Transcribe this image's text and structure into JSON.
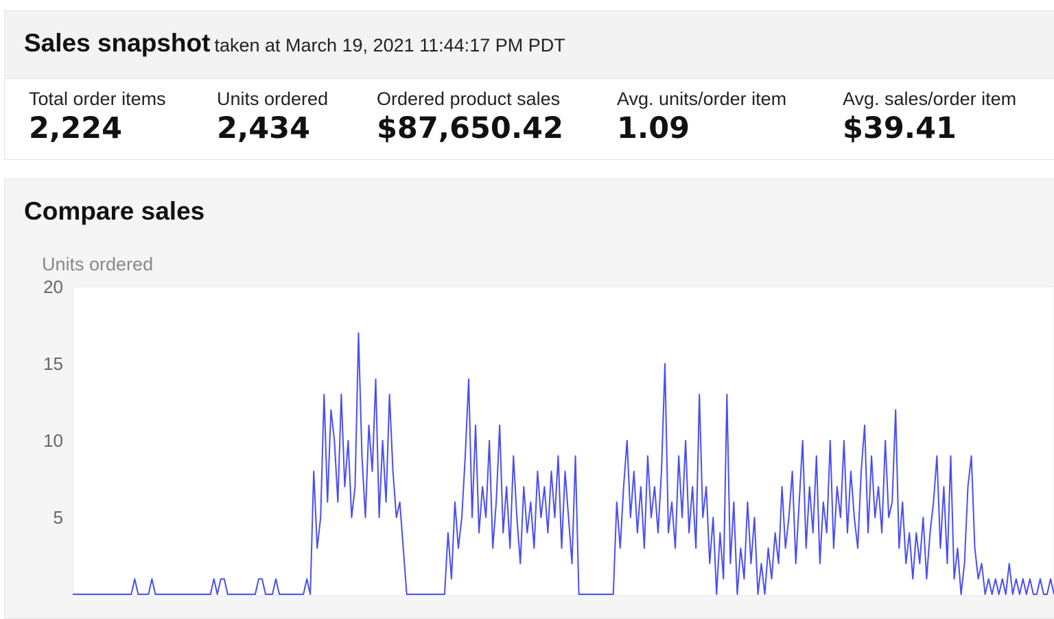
{
  "header": {
    "title": "Sales snapshot",
    "subtitle": "taken at March 19, 2021 11:44:17 PM PDT"
  },
  "metrics": [
    {
      "label": "Total order items",
      "value": "2,224"
    },
    {
      "label": "Units ordered",
      "value": "2,434"
    },
    {
      "label": "Ordered product sales",
      "value": "$87,650.42"
    },
    {
      "label": "Avg. units/order item",
      "value": "1.09"
    },
    {
      "label": "Avg. sales/order item",
      "value": "$39.41"
    }
  ],
  "chart_data": {
    "type": "line",
    "title": "Compare sales",
    "y_label": "Units ordered",
    "color": "#4a4ef0",
    "ylim": [
      0,
      20
    ],
    "yticks": [
      5,
      10,
      15,
      20
    ],
    "grid": false,
    "values": [
      0,
      0,
      0,
      0,
      0,
      0,
      0,
      0,
      0,
      0,
      0,
      0,
      0,
      0,
      0,
      0,
      0,
      0,
      1,
      0,
      0,
      0,
      0,
      1,
      0,
      0,
      0,
      0,
      0,
      0,
      0,
      0,
      0,
      0,
      0,
      0,
      0,
      0,
      0,
      0,
      0,
      1,
      0,
      1,
      1,
      0,
      0,
      0,
      0,
      0,
      0,
      0,
      0,
      0,
      1,
      1,
      0,
      0,
      0,
      1,
      0,
      0,
      0,
      0,
      0,
      0,
      0,
      0,
      1,
      0,
      8,
      3,
      5,
      13,
      6,
      12,
      10,
      6,
      13,
      7,
      10,
      5,
      7,
      17,
      9,
      5,
      11,
      8,
      14,
      5,
      10,
      6,
      13,
      8,
      5,
      6,
      3,
      0,
      0,
      0,
      0,
      0,
      0,
      0,
      0,
      0,
      0,
      0,
      0,
      4,
      1,
      6,
      3,
      5,
      9,
      14,
      5,
      11,
      4,
      7,
      5,
      10,
      3,
      6,
      11,
      4,
      7,
      3,
      9,
      5,
      2,
      7,
      4,
      6,
      3,
      8,
      5,
      7,
      4,
      8,
      5,
      9,
      3,
      8,
      5,
      2,
      9,
      0,
      0,
      0,
      0,
      0,
      0,
      0,
      0,
      0,
      0,
      0,
      6,
      3,
      7,
      10,
      5,
      8,
      4,
      7,
      3,
      9,
      5,
      7,
      4,
      8,
      15,
      4,
      6,
      3,
      9,
      5,
      10,
      4,
      7,
      3,
      13,
      5,
      7,
      2,
      5,
      0,
      4,
      1,
      13,
      2,
      6,
      0,
      3,
      1,
      6,
      2,
      5,
      0,
      2,
      0,
      3,
      1,
      4,
      2,
      7,
      3,
      5,
      8,
      2,
      6,
      10,
      3,
      7,
      4,
      9,
      2,
      6,
      4,
      10,
      3,
      7,
      5,
      10,
      4,
      8,
      5,
      3,
      8,
      11,
      4,
      9,
      5,
      7,
      4,
      10,
      5,
      6,
      12,
      3,
      6,
      2,
      4,
      1,
      4,
      2,
      5,
      1,
      4,
      6,
      9,
      3,
      7,
      2,
      9,
      1,
      3,
      0,
      2,
      7,
      9,
      3,
      1,
      2,
      0,
      1,
      0,
      1,
      0,
      1,
      0,
      2,
      0,
      1,
      0,
      1,
      0,
      1,
      0,
      0,
      1,
      0,
      0,
      1,
      0
    ]
  }
}
